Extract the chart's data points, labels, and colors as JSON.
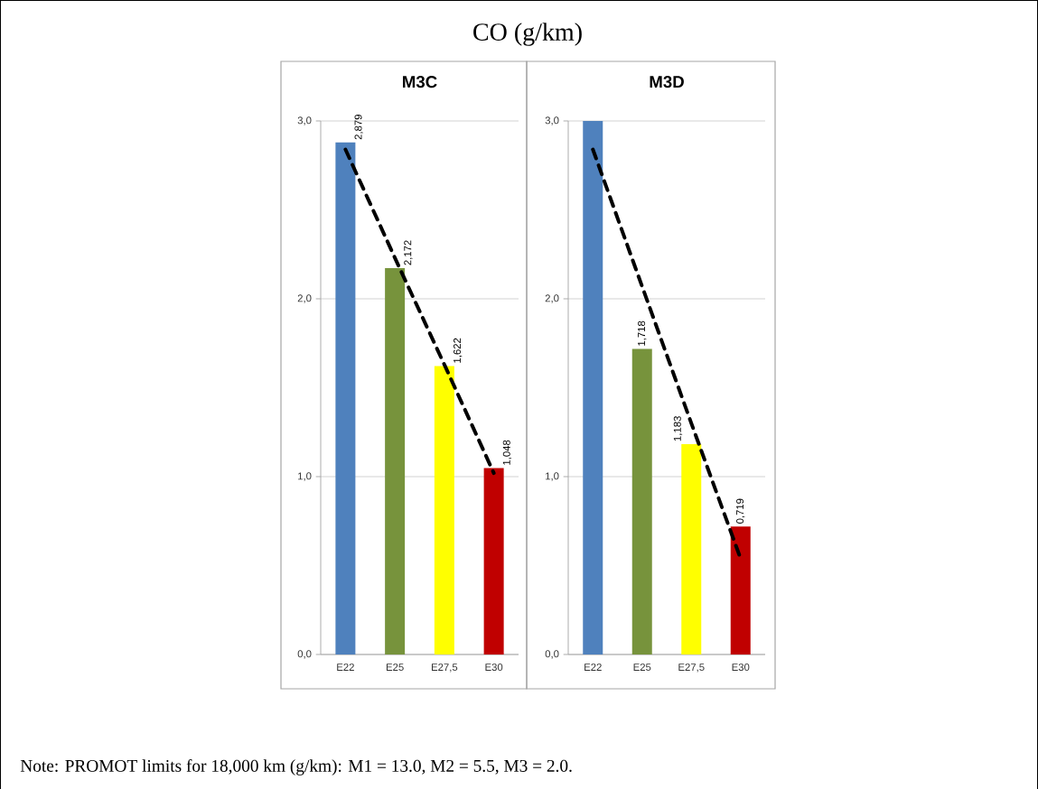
{
  "chart_data": [
    {
      "type": "bar",
      "title": "M3C",
      "categories": [
        "E22",
        "E25",
        "E27,5",
        "E30"
      ],
      "series": [
        {
          "values": [
            2.879,
            2.172,
            1.622,
            1.048
          ],
          "colors": [
            "#4f81bd",
            "#77933c",
            "#ffff00",
            "#c00000"
          ],
          "value_labels": [
            "2,879",
            "2,172",
            "1,622",
            "1,048"
          ]
        },
        {
          "type": "line",
          "values": [
            2.84,
            2.23,
            1.63,
            1.02
          ],
          "color": "#000000",
          "line_style": "dashed"
        }
      ],
      "ylim": [
        0,
        3
      ],
      "yticks": [
        {
          "value": 0,
          "label": "0,0"
        },
        {
          "value": 1,
          "label": "1,0"
        },
        {
          "value": 2,
          "label": "2,0"
        },
        {
          "value": 3,
          "label": "3,0"
        }
      ],
      "grid": "y",
      "annotations": [
        "CO (g/km)",
        "Note: PROMOT limits for 18,000 km (g/km):  M1 = 13.0, M2 = 5.5, M3 = 2.0."
      ]
    },
    {
      "type": "bar",
      "title": "M3D",
      "categories": [
        "E22",
        "E25",
        "E27,5",
        "E30"
      ],
      "series": [
        {
          "values": [
            3.0,
            1.718,
            1.183,
            0.719
          ],
          "colors": [
            "#4f81bd",
            "#77933c",
            "#ffff00",
            "#c00000"
          ],
          "value_labels": [
            null,
            "1,718",
            "1,183",
            "0,719"
          ]
        },
        {
          "type": "line",
          "values": [
            2.84,
            2.07,
            1.3,
            0.54
          ],
          "color": "#000000",
          "line_style": "dashed"
        }
      ],
      "ylim": [
        0,
        3
      ],
      "yticks": [
        {
          "value": 0,
          "label": "0,0"
        },
        {
          "value": 1,
          "label": "1,0"
        },
        {
          "value": 2,
          "label": "2,0"
        },
        {
          "value": 3,
          "label": "3,0"
        }
      ],
      "grid": "y"
    }
  ]
}
